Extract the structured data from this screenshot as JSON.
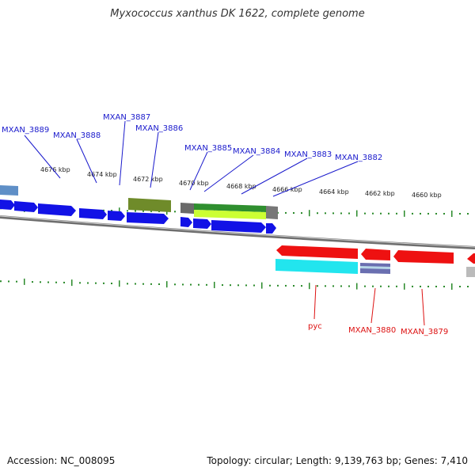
{
  "header": {
    "title": "Myxococcus xanthus DK 1622, complete genome"
  },
  "footer": {
    "accession": "Accession: NC_008095",
    "topology": "Topology: circular; Length: 9,139,763 bp; Genes: 7,410"
  },
  "colors": {
    "forward_gene": "#1212e6",
    "reverse_gene": "#ee1111",
    "tick": "#2a8a2a",
    "backbone": "#888888",
    "forward_label": "#1a1acc",
    "reverse_label": "#dd1111",
    "olive_feature": "#6f8b2a",
    "green_feature": "#2f8f2f",
    "lime_feature": "#ccff33",
    "cyan_feature": "#22e5ee",
    "gray_feature": "#777777"
  },
  "scale": {
    "unit": "kbp",
    "labels": [
      "4676 kbp",
      "4674 kbp",
      "4672 kbp",
      "4670 kbp",
      "4668 kbp",
      "4666 kbp",
      "4664 kbp",
      "4662 kbp",
      "4660 kbp"
    ]
  },
  "forward_labels": [
    "MXAN_3889",
    "MXAN_3888",
    "MXAN_3887",
    "MXAN_3886",
    "MXAN_3885",
    "MXAN_3884",
    "MXAN_3883",
    "MXAN_3882"
  ],
  "reverse_labels": [
    "pyc",
    "MXAN_3880",
    "MXAN_3879"
  ],
  "icons": [
    "none"
  ]
}
